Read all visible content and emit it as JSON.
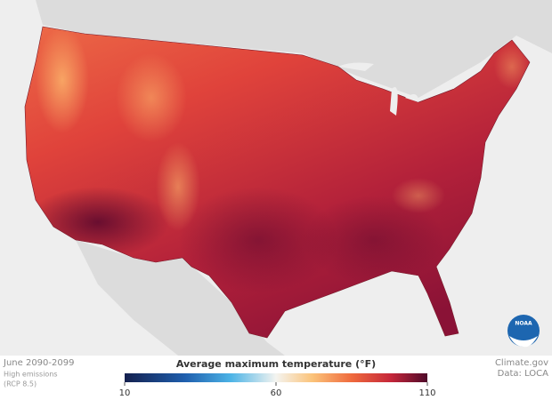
{
  "footer_left": [
    "June 2090-2099",
    "High emissions",
    "(RCP 8.5)"
  ],
  "footer_right": [
    "Climate.gov",
    "Data: LOCA"
  ],
  "logo": "NOAA",
  "legend": {
    "title": "Average maximum temperature (°F)",
    "range": [
      10,
      110
    ],
    "ticks": [
      10,
      60,
      110
    ]
  }
}
